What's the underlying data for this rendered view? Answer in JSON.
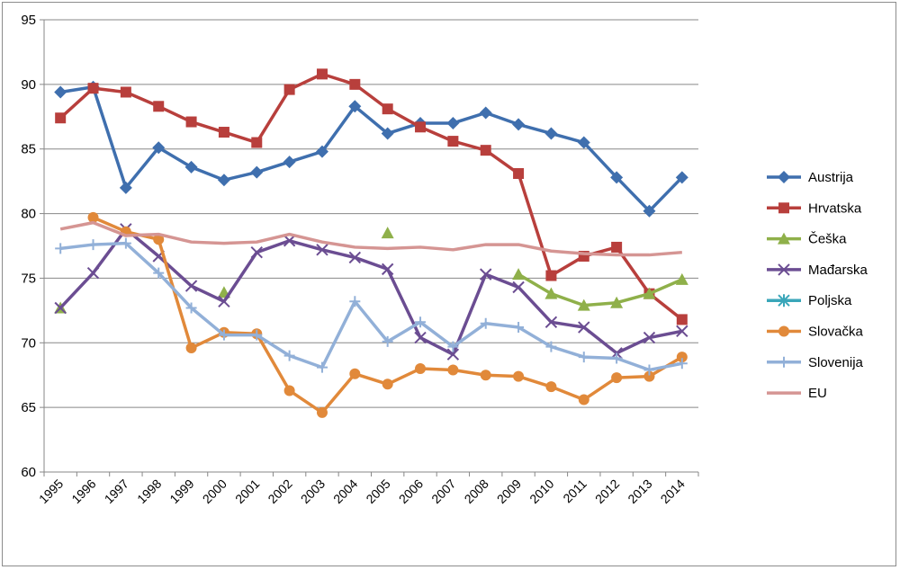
{
  "chart_data": {
    "type": "line",
    "title": "",
    "xlabel": "",
    "ylabel": "",
    "ylim": [
      60,
      95
    ],
    "yticks": [
      60,
      65,
      70,
      75,
      80,
      85,
      90,
      95
    ],
    "grid": "horizontal",
    "legend_position": "right",
    "categories": [
      "1995",
      "1996",
      "1997",
      "1998",
      "1999",
      "2000",
      "2001",
      "2002",
      "2003",
      "2004",
      "2005",
      "2006",
      "2007",
      "2008",
      "2009",
      "2010",
      "2011",
      "2012",
      "2013",
      "2014"
    ],
    "series": [
      {
        "name": "Austrija",
        "color": "#3f6fae",
        "marker": "diamond",
        "values": [
          89.4,
          89.8,
          82.0,
          85.1,
          83.6,
          82.6,
          83.2,
          84.0,
          84.8,
          88.3,
          86.2,
          87.0,
          87.0,
          87.8,
          86.9,
          86.2,
          85.5,
          82.8,
          80.2,
          82.8
        ]
      },
      {
        "name": "Hrvatska",
        "color": "#b83f3c",
        "marker": "square",
        "values": [
          87.4,
          89.7,
          89.4,
          88.3,
          87.1,
          86.3,
          85.5,
          89.6,
          90.8,
          90.0,
          88.1,
          86.7,
          85.6,
          84.9,
          83.1,
          75.2,
          76.7,
          77.4,
          73.8,
          71.8
        ]
      },
      {
        "name": "Češka",
        "color": "#8fb04a",
        "marker": "triangle",
        "values": [
          72.7,
          null,
          null,
          null,
          null,
          73.9,
          null,
          null,
          null,
          null,
          78.5,
          null,
          null,
          null,
          75.3,
          73.8,
          72.9,
          73.1,
          73.8,
          74.9
        ]
      },
      {
        "name": "Mađarska",
        "color": "#6b4d92",
        "marker": "x",
        "values": [
          72.7,
          75.4,
          78.8,
          76.7,
          74.4,
          73.2,
          77.0,
          77.9,
          77.2,
          76.6,
          75.7,
          70.4,
          69.1,
          75.3,
          74.3,
          71.6,
          71.2,
          69.2,
          70.4,
          70.9
        ]
      },
      {
        "name": "Poljska",
        "color": "#3aa6b9",
        "marker": "asterisk",
        "values": [
          null,
          null,
          null,
          null,
          null,
          null,
          null,
          null,
          null,
          null,
          null,
          null,
          null,
          null,
          null,
          null,
          null,
          null,
          null,
          null
        ]
      },
      {
        "name": "Slovačka",
        "color": "#e1893a",
        "marker": "circle",
        "values": [
          null,
          79.7,
          78.6,
          78.0,
          69.6,
          70.8,
          70.7,
          66.3,
          64.6,
          67.6,
          66.8,
          68.0,
          67.9,
          67.5,
          67.4,
          66.6,
          65.6,
          67.3,
          67.4,
          68.9
        ]
      },
      {
        "name": "Slovenija",
        "color": "#92b0d8",
        "marker": "plus",
        "values": [
          77.3,
          77.6,
          77.7,
          75.4,
          72.7,
          70.6,
          70.6,
          69.0,
          68.1,
          73.2,
          70.1,
          71.6,
          69.7,
          71.5,
          71.2,
          69.7,
          68.9,
          68.8,
          67.9,
          68.4
        ]
      },
      {
        "name": "EU",
        "color": "#d59593",
        "marker": "none",
        "values": [
          78.8,
          79.3,
          78.3,
          78.4,
          77.8,
          77.7,
          77.8,
          78.4,
          77.8,
          77.4,
          77.3,
          77.4,
          77.2,
          77.6,
          77.6,
          77.1,
          76.9,
          76.8,
          76.8,
          77.0
        ]
      }
    ]
  }
}
